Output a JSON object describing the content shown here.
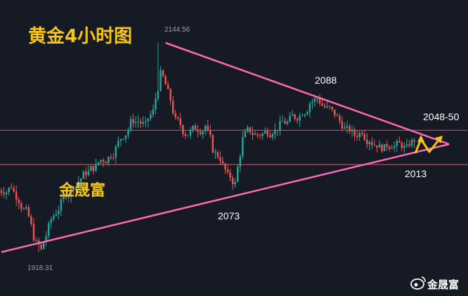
{
  "chart_data": {
    "type": "candlestick",
    "title": "黄金4小时图",
    "watermark_center": "金晟富",
    "watermark_corner": "金晟富",
    "price_labels": {
      "high": "2144.56",
      "low": "1918.31"
    },
    "annotations": [
      "2088",
      "2073",
      "2048-50",
      "2013"
    ],
    "horizontal_levels": [
      2050,
      2013
    ],
    "trendlines": [
      {
        "name": "upper",
        "from": [
          22,
          2144.56
        ],
        "to": [
          60,
          2035
        ]
      },
      {
        "name": "lower",
        "from": [
          0,
          1918.31
        ],
        "to": [
          60,
          2035
        ]
      }
    ],
    "ylim": [
      1902,
      2162
    ],
    "x_count": 56,
    "closes": [
      1985,
      1990,
      1975,
      1962,
      1935,
      1920,
      1945,
      1962,
      1978,
      1985,
      1995,
      2005,
      2010,
      2018,
      2020,
      2030,
      2045,
      2058,
      2060,
      2055,
      2070,
      2110,
      2090,
      2060,
      2050,
      2048,
      2052,
      2055,
      2030,
      2020,
      2000,
      1992,
      2040,
      2050,
      2045,
      2048,
      2050,
      2055,
      2058,
      2065,
      2070,
      2080,
      2085,
      2075,
      2070,
      2060,
      2050,
      2045,
      2050,
      2040,
      2035,
      2030,
      2035,
      2035,
      2030,
      2040
    ],
    "colors": {
      "background": "#161a25",
      "bull": "#26a69a",
      "bear": "#ef5350",
      "trendline": "#ff69b4",
      "hline": "#c94a4a",
      "title": "#f5c518",
      "arrow": "#f5c518",
      "label": "#ffffff",
      "price_label": "#9aa0aa"
    }
  }
}
